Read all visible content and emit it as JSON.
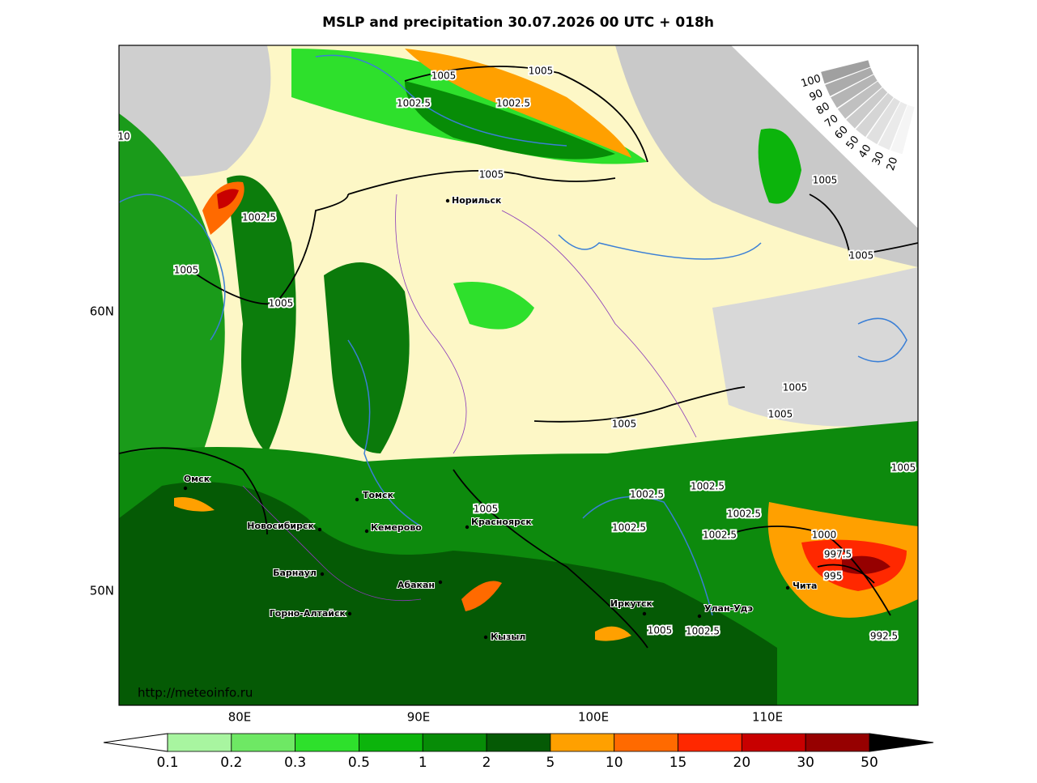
{
  "title": "MSLP and precipitation 30.07.2026 00 UTC + 018h",
  "url": "http://meteoinfo.ru",
  "latitude_labels": [
    "60N",
    "50N"
  ],
  "longitude_labels": [
    "80E",
    "90E",
    "100E",
    "110E"
  ],
  "cities": [
    "Норильск",
    "Омск",
    "Томск",
    "Новосибирск",
    "Кемерово",
    "Красноярск",
    "Барнаул",
    "Абакан",
    "Горно-Алтайск",
    "Кызыл",
    "Иркутск",
    "Улан-Удэ",
    "Чита"
  ],
  "isobar_labels": [
    1005,
    1005,
    1002.5,
    1002.5,
    10,
    1005,
    1005,
    1002.5,
    1005,
    1005,
    1005,
    1005,
    1005,
    1005,
    1005,
    1002.5,
    1002.5,
    1005,
    1002.5,
    1002.5,
    1002.5,
    1000,
    997.5,
    995,
    1005,
    1002.5,
    992.5
  ],
  "precipitation_scale": {
    "levels": [
      0.1,
      0.2,
      0.3,
      0.5,
      1,
      2,
      5,
      10,
      15,
      20,
      30,
      50
    ],
    "colors": [
      "#a8f5a0",
      "#6ee864",
      "#2ee02c",
      "#0cb40c",
      "#078c07",
      "#055a05",
      "#ffa000",
      "#ff6a00",
      "#ff2800",
      "#c80000",
      "#960000"
    ]
  },
  "cloud_scale": {
    "levels": [
      100,
      90,
      80,
      70,
      60,
      50,
      40,
      30,
      20
    ]
  }
}
